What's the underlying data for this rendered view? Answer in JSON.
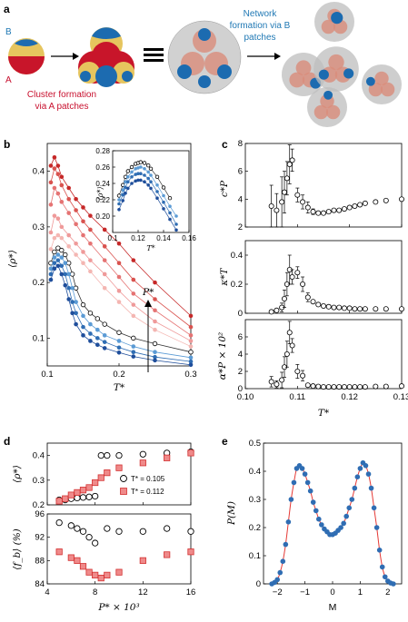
{
  "panel_a": {
    "label": "a",
    "patch_b": "B",
    "patch_a": "A",
    "cluster_caption": [
      "Cluster formation",
      "via A patches"
    ],
    "network_caption": [
      "Network",
      "formation via B",
      "patches"
    ],
    "colors": {
      "cluster_text": "#c8102e",
      "network_text": "#1f78b4",
      "sphere": "#e0c060",
      "patch_a": "#d01f1f",
      "patch_b": "#1f6fb4"
    }
  },
  "chart_data": [
    {
      "id": "b",
      "type": "line",
      "label": "b",
      "xlabel": "T*",
      "ylabel": "⟨ρ*⟩",
      "xlim": [
        0.1,
        0.3
      ],
      "ylim": [
        0.05,
        0.45
      ],
      "xticks": [
        "0.1",
        "0.2",
        "0.3"
      ],
      "yticks": [
        "0.1",
        "0.2",
        "0.3",
        "0.4"
      ],
      "arrow_label": "P*",
      "series": [
        {
          "color": "#c62828",
          "marker": "filled",
          "x": [
            0.105,
            0.11,
            0.115,
            0.12,
            0.13,
            0.14,
            0.15,
            0.16,
            0.18,
            0.2,
            0.22,
            0.25,
            0.3
          ],
          "y": [
            0.41,
            0.425,
            0.41,
            0.39,
            0.37,
            0.35,
            0.335,
            0.32,
            0.295,
            0.27,
            0.24,
            0.2,
            0.14
          ]
        },
        {
          "color": "#d9534f",
          "marker": "filled",
          "x": [
            0.105,
            0.11,
            0.115,
            0.12,
            0.13,
            0.14,
            0.15,
            0.16,
            0.18,
            0.2,
            0.22,
            0.25,
            0.3
          ],
          "y": [
            0.38,
            0.405,
            0.395,
            0.375,
            0.35,
            0.33,
            0.31,
            0.295,
            0.265,
            0.235,
            0.205,
            0.17,
            0.12
          ]
        },
        {
          "color": "#e57373",
          "marker": "filled",
          "x": [
            0.105,
            0.11,
            0.115,
            0.12,
            0.13,
            0.14,
            0.15,
            0.16,
            0.18,
            0.2,
            0.22,
            0.25,
            0.3
          ],
          "y": [
            0.34,
            0.37,
            0.36,
            0.345,
            0.325,
            0.305,
            0.285,
            0.27,
            0.24,
            0.21,
            0.18,
            0.15,
            0.105
          ]
        },
        {
          "color": "#ef9a9a",
          "marker": "filled",
          "x": [
            0.105,
            0.11,
            0.115,
            0.12,
            0.13,
            0.14,
            0.15,
            0.16,
            0.18,
            0.2,
            0.22,
            0.25,
            0.3
          ],
          "y": [
            0.29,
            0.32,
            0.315,
            0.3,
            0.285,
            0.27,
            0.255,
            0.24,
            0.215,
            0.185,
            0.16,
            0.13,
            0.095
          ]
        },
        {
          "color": "#f4b6b2",
          "marker": "filled",
          "x": [
            0.105,
            0.11,
            0.115,
            0.12,
            0.13,
            0.14,
            0.15,
            0.16,
            0.18,
            0.2,
            0.22,
            0.25,
            0.3
          ],
          "y": [
            0.26,
            0.28,
            0.285,
            0.28,
            0.265,
            0.25,
            0.235,
            0.22,
            0.19,
            0.165,
            0.14,
            0.115,
            0.085
          ]
        },
        {
          "color": "#000000",
          "marker": "open",
          "x": [
            0.105,
            0.11,
            0.115,
            0.12,
            0.125,
            0.13,
            0.135,
            0.14,
            0.15,
            0.16,
            0.17,
            0.18,
            0.2,
            0.22,
            0.25,
            0.3
          ],
          "y": [
            0.235,
            0.255,
            0.262,
            0.258,
            0.25,
            0.235,
            0.215,
            0.19,
            0.16,
            0.145,
            0.135,
            0.125,
            0.11,
            0.1,
            0.09,
            0.075
          ]
        },
        {
          "color": "#5b9bd5",
          "marker": "filled",
          "x": [
            0.105,
            0.11,
            0.115,
            0.12,
            0.125,
            0.13,
            0.135,
            0.14,
            0.15,
            0.16,
            0.17,
            0.18,
            0.2,
            0.22,
            0.25,
            0.3
          ],
          "y": [
            0.225,
            0.245,
            0.25,
            0.245,
            0.235,
            0.215,
            0.19,
            0.165,
            0.14,
            0.125,
            0.115,
            0.105,
            0.095,
            0.085,
            0.075,
            0.065
          ]
        },
        {
          "color": "#2f6db3",
          "marker": "filled",
          "x": [
            0.105,
            0.11,
            0.115,
            0.12,
            0.125,
            0.13,
            0.135,
            0.14,
            0.15,
            0.16,
            0.17,
            0.18,
            0.2,
            0.22,
            0.25,
            0.3
          ],
          "y": [
            0.215,
            0.235,
            0.24,
            0.23,
            0.215,
            0.19,
            0.165,
            0.145,
            0.12,
            0.108,
            0.1,
            0.093,
            0.083,
            0.075,
            0.066,
            0.058
          ]
        },
        {
          "color": "#1f4e9b",
          "marker": "filled",
          "x": [
            0.105,
            0.11,
            0.115,
            0.12,
            0.125,
            0.13,
            0.135,
            0.14,
            0.15,
            0.16,
            0.17,
            0.18,
            0.2,
            0.22,
            0.25,
            0.3
          ],
          "y": [
            0.205,
            0.225,
            0.23,
            0.215,
            0.195,
            0.17,
            0.145,
            0.125,
            0.105,
            0.095,
            0.088,
            0.082,
            0.074,
            0.067,
            0.06,
            0.052
          ]
        }
      ]
    },
    {
      "id": "b_inset",
      "type": "line",
      "xlabel": "T*",
      "ylabel": "⟨ρ*⟩",
      "xlim": [
        0.1,
        0.16
      ],
      "ylim": [
        0.18,
        0.28
      ],
      "xticks": [
        "0.1",
        "0.12",
        "0.14",
        "0.16"
      ],
      "yticks": [
        "0.20",
        "0.22",
        "0.24",
        "0.26",
        "0.28"
      ],
      "series": [
        {
          "color": "#000000",
          "marker": "open",
          "x": [
            0.105,
            0.108,
            0.11,
            0.112,
            0.115,
            0.118,
            0.12,
            0.122,
            0.125,
            0.128,
            0.13,
            0.135,
            0.14,
            0.145
          ],
          "y": [
            0.225,
            0.238,
            0.248,
            0.255,
            0.26,
            0.264,
            0.265,
            0.266,
            0.265,
            0.262,
            0.258,
            0.248,
            0.235,
            0.222
          ]
        },
        {
          "color": "#5b9bd5",
          "marker": "filled",
          "x": [
            0.105,
            0.108,
            0.11,
            0.112,
            0.115,
            0.118,
            0.12,
            0.122,
            0.125,
            0.128,
            0.13,
            0.135,
            0.14,
            0.145,
            0.15
          ],
          "y": [
            0.22,
            0.232,
            0.242,
            0.248,
            0.254,
            0.258,
            0.259,
            0.26,
            0.258,
            0.254,
            0.25,
            0.238,
            0.225,
            0.212,
            0.2
          ]
        },
        {
          "color": "#2f6db3",
          "marker": "filled",
          "x": [
            0.105,
            0.108,
            0.11,
            0.112,
            0.115,
            0.118,
            0.12,
            0.122,
            0.125,
            0.128,
            0.13,
            0.135,
            0.14,
            0.145,
            0.15
          ],
          "y": [
            0.215,
            0.226,
            0.235,
            0.242,
            0.248,
            0.251,
            0.252,
            0.252,
            0.25,
            0.246,
            0.242,
            0.23,
            0.217,
            0.204,
            0.19
          ]
        },
        {
          "color": "#1f4e9b",
          "marker": "filled",
          "x": [
            0.105,
            0.108,
            0.11,
            0.112,
            0.115,
            0.118,
            0.12,
            0.122,
            0.125,
            0.128,
            0.13,
            0.135,
            0.14,
            0.145,
            0.15
          ],
          "y": [
            0.208,
            0.219,
            0.228,
            0.234,
            0.24,
            0.243,
            0.244,
            0.244,
            0.242,
            0.238,
            0.234,
            0.222,
            0.209,
            0.196,
            0.183
          ]
        }
      ]
    },
    {
      "id": "c1",
      "type": "scatter",
      "label": "c",
      "ylabel": "c*P",
      "xlim": [
        0.1,
        0.13
      ],
      "ylim": [
        2,
        8
      ],
      "yticks": [
        "2",
        "4",
        "6",
        "8"
      ],
      "x": [
        0.105,
        0.106,
        0.107,
        0.1075,
        0.108,
        0.1085,
        0.109,
        0.11,
        0.111,
        0.112,
        0.113,
        0.114,
        0.115,
        0.116,
        0.117,
        0.118,
        0.119,
        0.12,
        0.121,
        0.122,
        0.123,
        0.125,
        0.127,
        0.13
      ],
      "y": [
        3.5,
        3.2,
        3.8,
        4.5,
        5.5,
        6.5,
        6.8,
        4.3,
        3.8,
        3.4,
        3.1,
        3.0,
        3.0,
        3.1,
        3.2,
        3.2,
        3.3,
        3.4,
        3.5,
        3.6,
        3.7,
        3.8,
        3.9,
        4.0
      ],
      "yerr": [
        1.5,
        1.2,
        1.8,
        1.5,
        1.2,
        1.4,
        0.8,
        0.5,
        0.5,
        0.4,
        0.2,
        0.1,
        0.1,
        0.1,
        0.1,
        0.1,
        0.1,
        0.1,
        0.1,
        0.1,
        0.1,
        0.1,
        0.1,
        0.1
      ]
    },
    {
      "id": "c2",
      "type": "scatter",
      "ylabel": "κ*T",
      "xlim": [
        0.1,
        0.13
      ],
      "ylim": [
        0,
        0.5
      ],
      "yticks": [
        "0",
        "0.2",
        "0.4"
      ],
      "x": [
        0.105,
        0.106,
        0.107,
        0.1075,
        0.108,
        0.1085,
        0.109,
        0.11,
        0.111,
        0.112,
        0.113,
        0.114,
        0.115,
        0.116,
        0.117,
        0.118,
        0.119,
        0.12,
        0.121,
        0.122,
        0.123,
        0.125,
        0.127,
        0.13
      ],
      "y": [
        0.01,
        0.02,
        0.04,
        0.1,
        0.2,
        0.3,
        0.25,
        0.28,
        0.2,
        0.11,
        0.08,
        0.06,
        0.05,
        0.045,
        0.04,
        0.04,
        0.035,
        0.035,
        0.03,
        0.03,
        0.03,
        0.03,
        0.03,
        0.03
      ],
      "yerr": [
        0.01,
        0.01,
        0.03,
        0.06,
        0.08,
        0.1,
        0.05,
        0.04,
        0.05,
        0.03,
        0.01,
        0.01,
        0.0,
        0.0,
        0.0,
        0.0,
        0.0,
        0.0,
        0.0,
        0.0,
        0.0,
        0.0,
        0.0,
        0.0
      ]
    },
    {
      "id": "c3",
      "type": "scatter",
      "xlabel": "T*",
      "ylabel": "α*P × 10²",
      "xlim": [
        0.1,
        0.13
      ],
      "ylim": [
        0,
        8
      ],
      "xticks": [
        "0.10",
        "0.11",
        "0.12",
        "0.13"
      ],
      "yticks": [
        "0",
        "2",
        "4",
        "6"
      ],
      "x": [
        0.105,
        0.106,
        0.107,
        0.1075,
        0.108,
        0.1085,
        0.109,
        0.11,
        0.111,
        0.112,
        0.113,
        0.114,
        0.115,
        0.116,
        0.117,
        0.118,
        0.119,
        0.12,
        0.121,
        0.122,
        0.123,
        0.125,
        0.127,
        0.13
      ],
      "y": [
        0.8,
        0.5,
        1.0,
        2.5,
        4.0,
        6.5,
        5.0,
        2.0,
        1.5,
        0.4,
        0.3,
        0.25,
        0.2,
        0.2,
        0.2,
        0.2,
        0.2,
        0.2,
        0.2,
        0.2,
        0.2,
        0.25,
        0.25,
        0.3
      ],
      "yerr": [
        0.6,
        0.4,
        0.9,
        1.2,
        1.5,
        1.3,
        0.8,
        0.8,
        0.6,
        0.1,
        0.1,
        0.0,
        0.0,
        0.0,
        0.0,
        0.0,
        0.0,
        0.0,
        0.0,
        0.0,
        0.0,
        0.0,
        0.0,
        0.0
      ]
    },
    {
      "id": "d1",
      "type": "scatter",
      "label": "d",
      "ylabel": "⟨ρ*⟩",
      "xlim": [
        4,
        16
      ],
      "ylim": [
        0.2,
        0.45
      ],
      "yticks": [
        "0.2",
        "0.3",
        "0.4"
      ],
      "legend": [
        "T* = 0.105",
        "T* = 0.112"
      ],
      "series": [
        {
          "name": "T* = 0.105",
          "marker": "open-circle",
          "color": "#000000",
          "x": [
            5,
            5.5,
            6,
            6.5,
            7,
            7.5,
            8,
            8.5,
            9,
            10,
            12,
            14,
            16
          ],
          "y": [
            0.22,
            0.22,
            0.225,
            0.228,
            0.23,
            0.232,
            0.235,
            0.4,
            0.4,
            0.4,
            0.405,
            0.41,
            0.415
          ]
        },
        {
          "name": "T* = 0.112",
          "marker": "square",
          "color": "#e53935",
          "x": [
            5,
            5.5,
            6,
            6.5,
            7,
            7.5,
            8,
            8.5,
            9,
            10,
            12,
            14,
            16
          ],
          "y": [
            0.215,
            0.225,
            0.24,
            0.25,
            0.26,
            0.27,
            0.29,
            0.31,
            0.33,
            0.35,
            0.37,
            0.39,
            0.41
          ]
        }
      ]
    },
    {
      "id": "d2",
      "type": "scatter",
      "xlabel": "P* × 10³",
      "ylabel": "⟨f_b⟩ (%)",
      "xlim": [
        4,
        16
      ],
      "ylim": [
        84,
        96
      ],
      "xticks": [
        "4",
        "8",
        "12",
        "16"
      ],
      "yticks": [
        "84",
        "88",
        "92",
        "96"
      ],
      "series": [
        {
          "name": "T* = 0.105",
          "marker": "open-circle",
          "color": "#000000",
          "x": [
            5,
            6,
            6.5,
            7,
            7.5,
            8,
            9,
            10,
            12,
            14,
            16
          ],
          "y": [
            94.5,
            94,
            93.5,
            93,
            92,
            91,
            93.5,
            93,
            93,
            93.5,
            93
          ]
        },
        {
          "name": "T* = 0.112",
          "marker": "square",
          "color": "#e53935",
          "x": [
            5,
            6,
            6.5,
            7,
            7.5,
            8,
            8.5,
            9,
            10,
            12,
            14,
            16
          ],
          "y": [
            89.5,
            88.5,
            88,
            87,
            86,
            85.5,
            85,
            85.5,
            86,
            88,
            89,
            89.5
          ]
        }
      ]
    },
    {
      "id": "e",
      "type": "line",
      "label": "e",
      "xlabel": "M",
      "ylabel": "P(M)",
      "xlim": [
        -2.5,
        2.5
      ],
      "ylim": [
        0,
        0.5
      ],
      "xticks": [
        "−2",
        "−1",
        "0",
        "1",
        "2"
      ],
      "yticks": [
        "0",
        "0.1",
        "0.2",
        "0.3",
        "0.4",
        "0.5"
      ],
      "line_color": "#e53935",
      "marker_color": "#2f6db3",
      "x": [
        -2.2,
        -2.1,
        -2.0,
        -1.9,
        -1.8,
        -1.7,
        -1.6,
        -1.5,
        -1.4,
        -1.3,
        -1.2,
        -1.1,
        -1.0,
        -0.9,
        -0.8,
        -0.7,
        -0.6,
        -0.5,
        -0.4,
        -0.3,
        -0.2,
        -0.1,
        0.0,
        0.1,
        0.2,
        0.3,
        0.4,
        0.5,
        0.6,
        0.7,
        0.8,
        0.9,
        1.0,
        1.1,
        1.2,
        1.3,
        1.4,
        1.5,
        1.6,
        1.7,
        1.8,
        1.9,
        2.0,
        2.1,
        2.2
      ],
      "y": [
        0.0,
        0.005,
        0.015,
        0.04,
        0.08,
        0.14,
        0.22,
        0.3,
        0.36,
        0.41,
        0.42,
        0.41,
        0.39,
        0.36,
        0.33,
        0.29,
        0.26,
        0.23,
        0.21,
        0.195,
        0.185,
        0.175,
        0.175,
        0.18,
        0.19,
        0.2,
        0.215,
        0.24,
        0.27,
        0.3,
        0.34,
        0.38,
        0.41,
        0.43,
        0.42,
        0.39,
        0.34,
        0.27,
        0.2,
        0.12,
        0.06,
        0.025,
        0.01,
        0.003,
        0.0
      ]
    }
  ]
}
